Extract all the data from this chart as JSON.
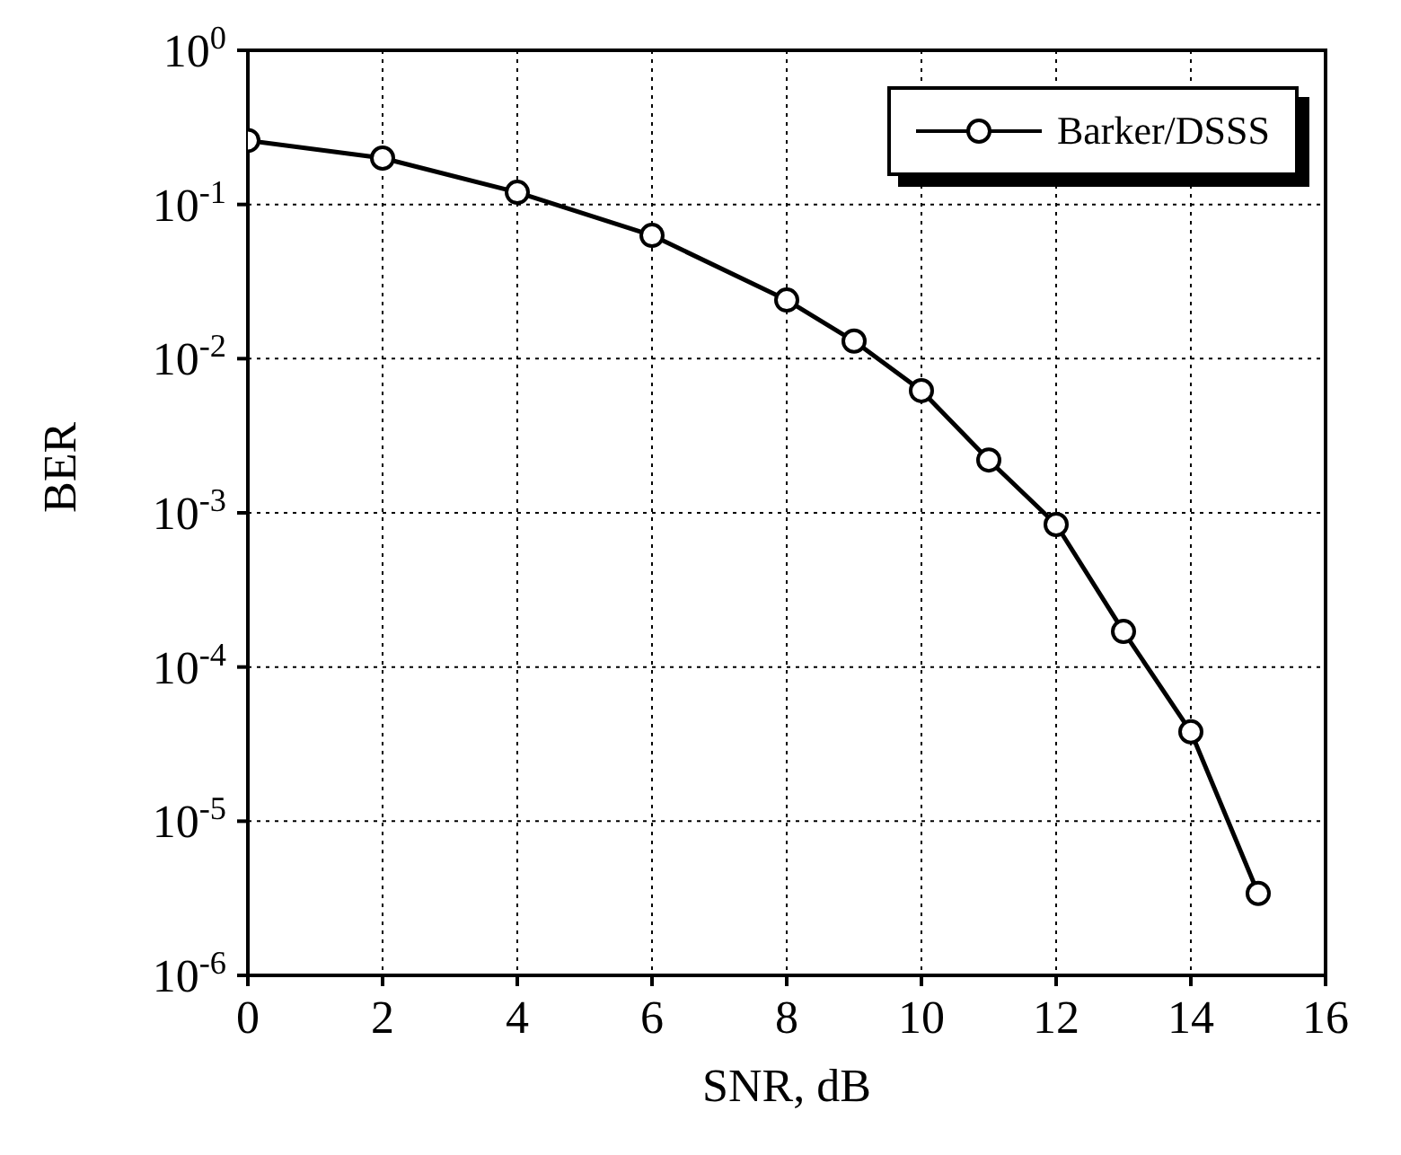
{
  "chart_data": {
    "type": "line",
    "xlabel": "SNR, dB",
    "ylabel": "BER",
    "x": [
      0,
      2,
      4,
      6,
      8,
      9,
      10,
      11,
      12,
      13,
      14,
      15
    ],
    "series": [
      {
        "name": "Barker/DSSS",
        "color": "#000000",
        "values": [
          0.26,
          0.2,
          0.12,
          0.063,
          0.024,
          0.013,
          0.0062,
          0.0022,
          0.00084,
          0.00017,
          3.8e-05,
          3.4e-06
        ]
      }
    ],
    "xlim": [
      0,
      16
    ],
    "xticks": [
      0,
      2,
      4,
      6,
      8,
      10,
      12,
      14,
      16
    ],
    "ylim": [
      1e-06,
      1
    ],
    "yticks": [
      {
        "value": 1e-06,
        "label": "10$^{-6}$"
      },
      {
        "value": 1e-05,
        "label": "10$^{-5}$"
      },
      {
        "value": 0.0001,
        "label": "10$^{-4}$"
      },
      {
        "value": 0.001,
        "label": "10$^{-3}$"
      },
      {
        "value": 0.01,
        "label": "10$^{-2}$"
      },
      {
        "value": 0.1,
        "label": "10$^{-1}$"
      },
      {
        "value": 1,
        "label": "10$^{0}$"
      }
    ],
    "log": "y",
    "grid": true,
    "legend": "top right",
    "marker": "circle",
    "line_style": "solid"
  }
}
